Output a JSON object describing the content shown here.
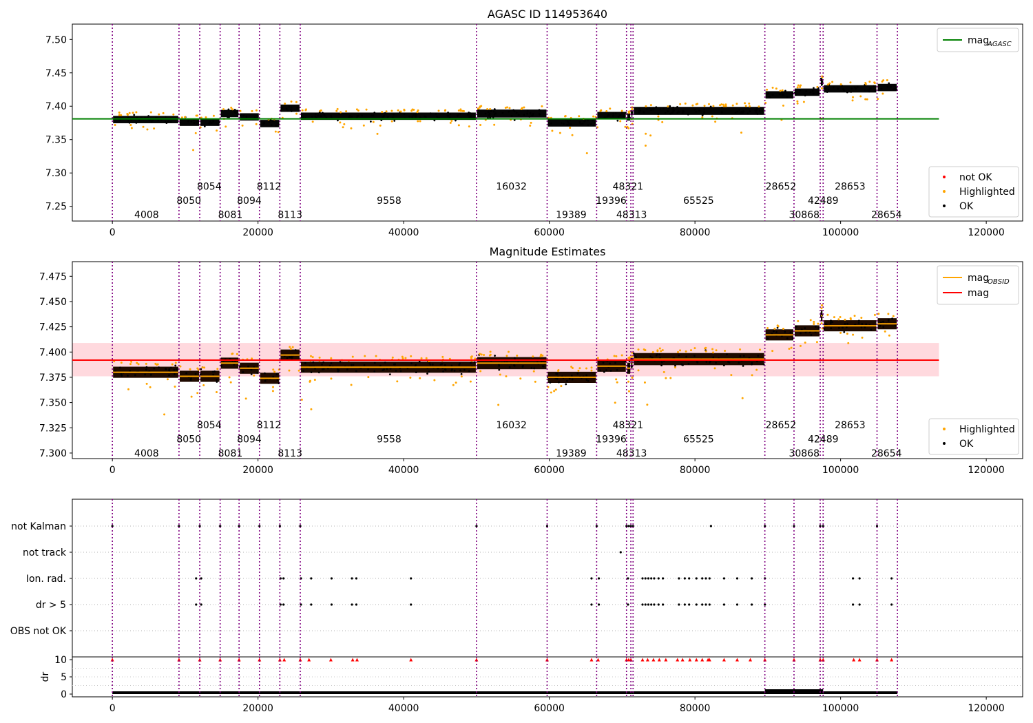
{
  "chart_data": [
    {
      "type": "scatter",
      "title": "AGASC ID 114953640",
      "xlim": [
        -5500,
        125000
      ],
      "ylim": [
        7.228,
        7.523
      ],
      "xticks": [
        0,
        20000,
        40000,
        60000,
        80000,
        100000,
        120000
      ],
      "xtick_labels": [
        "0",
        "20000",
        "40000",
        "60000",
        "80000",
        "100000",
        "120000"
      ],
      "yticks": [
        7.25,
        7.3,
        7.35,
        7.4,
        7.45,
        7.5
      ],
      "ytick_labels": [
        "7.25",
        "7.30",
        "7.35",
        "7.40",
        "7.45",
        "7.50"
      ],
      "hline": {
        "y": 7.381,
        "x_range": [
          -5500,
          113500
        ],
        "color": "#008000",
        "label": "mag",
        "label_sub": "AGASC"
      },
      "legend_lines": {
        "placement": "upper right",
        "entries": [
          {
            "label": "mag",
            "sub": "AGASC",
            "color": "#008000"
          }
        ]
      },
      "legend_points": {
        "placement": "lower right",
        "entries": [
          {
            "label": "not OK",
            "color": "#ff0000"
          },
          {
            "label": "Highlighted",
            "color": "#ffa500"
          },
          {
            "label": "OK",
            "color": "#000000"
          }
        ]
      },
      "label_rows_y": [
        7.28,
        7.259,
        7.238
      ]
    },
    {
      "type": "scatter",
      "title": "Magnitude Estimates",
      "xlim": [
        -5500,
        125000
      ],
      "ylim": [
        7.2945,
        7.4895
      ],
      "xticks": [
        0,
        20000,
        40000,
        60000,
        80000,
        100000,
        120000
      ],
      "xtick_labels": [
        "0",
        "20000",
        "40000",
        "60000",
        "80000",
        "100000",
        "120000"
      ],
      "yticks": [
        7.3,
        7.325,
        7.35,
        7.375,
        7.4,
        7.425,
        7.45,
        7.475
      ],
      "ytick_labels": [
        "7.300",
        "7.325",
        "7.350",
        "7.375",
        "7.400",
        "7.425",
        "7.450",
        "7.475"
      ],
      "hline": {
        "y": 7.392,
        "x_range": [
          -5500,
          113500
        ],
        "color": "#ff0000",
        "label": "mag"
      },
      "band": {
        "y_range": [
          7.376,
          7.409
        ],
        "x_range": [
          -5500,
          113500
        ],
        "color": "#ffc0c8"
      },
      "legend_lines": {
        "placement": "upper right",
        "entries": [
          {
            "label": "mag",
            "sub": "OBSID",
            "color": "#ffa500"
          },
          {
            "label": "mag",
            "sub": "",
            "color": "#ff0000"
          }
        ]
      },
      "legend_points": {
        "placement": "lower right",
        "entries": [
          {
            "label": "Highlighted",
            "color": "#ffa500"
          },
          {
            "label": "OK",
            "color": "#000000"
          }
        ]
      },
      "label_rows_y": [
        7.328,
        7.314,
        7.3
      ]
    },
    {
      "type": "scatter",
      "title": "",
      "xlim": [
        -5500,
        125000
      ],
      "categories": [
        "not Kalman",
        "not track",
        "Ion. rad.",
        "dr > 5",
        "OBS not OK"
      ],
      "flags": {
        "not Kalman": [
          0,
          9150,
          12000,
          14800,
          17400,
          20200,
          23000,
          25800,
          50000,
          59700,
          66500,
          70600,
          70900,
          71200,
          71500,
          82200,
          89600,
          93600,
          97200,
          97600,
          105000
        ],
        "not track": [
          69800
        ],
        "Ion. rad.": [
          11500,
          12200,
          23100,
          23500,
          25900,
          27300,
          30100,
          32900,
          33500,
          41000,
          65800,
          66800,
          70800,
          72800,
          73200,
          73600,
          74000,
          74400,
          75000,
          75600,
          77800,
          78600,
          79200,
          80200,
          81000,
          81500,
          82000,
          84000,
          85800,
          87800,
          89600,
          101700,
          102600,
          107000
        ],
        "dr > 5": [
          11500,
          12200,
          23100,
          23500,
          25900,
          27300,
          30100,
          32900,
          33500,
          41000,
          65800,
          66800,
          70800,
          72800,
          73200,
          73600,
          74000,
          74400,
          75000,
          75600,
          77800,
          78600,
          79200,
          80200,
          81000,
          81500,
          82000,
          84000,
          85800,
          87800,
          89600,
          101700,
          102600,
          107000
        ]
      }
    },
    {
      "type": "scatter",
      "title": "",
      "ylabel": "dr",
      "xlim": [
        -5500,
        125000
      ],
      "ylim": [
        -0.8,
        10.8
      ],
      "xticks": [
        0,
        20000,
        40000,
        60000,
        80000,
        100000,
        120000
      ],
      "xtick_labels": [
        "0",
        "20000",
        "40000",
        "60000",
        "80000",
        "100000",
        "120000"
      ],
      "yticks": [
        0,
        5,
        10
      ],
      "ytick_labels": [
        "0",
        "5",
        "10"
      ],
      "clipped_at_10": [
        0,
        9150,
        12000,
        14800,
        17400,
        20200,
        23000,
        23600,
        25800,
        27000,
        30000,
        33000,
        33600,
        41000,
        50000,
        59700,
        65800,
        66700,
        70600,
        70900,
        71200,
        72800,
        73500,
        74300,
        75100,
        76000,
        77600,
        78300,
        79300,
        80200,
        81000,
        81800,
        82000,
        84000,
        85800,
        87600,
        89600,
        93600,
        97200,
        97600,
        101800,
        102600,
        105000,
        107000
      ]
    }
  ],
  "observations": [
    {
      "obsid": "4008",
      "start": 0,
      "mag": 7.38,
      "row": 2,
      "label_x": 4700
    },
    {
      "obsid": "8050",
      "start": 9150,
      "mag": 7.376,
      "row": 1,
      "label_x": 10500
    },
    {
      "obsid": "8054",
      "start": 12000,
      "mag": 7.376,
      "row": 0,
      "label_x": 13300
    },
    {
      "obsid": "8081",
      "start": 14800,
      "mag": 7.389,
      "row": 2,
      "label_x": 16200
    },
    {
      "obsid": "8094",
      "start": 17400,
      "mag": 7.384,
      "row": 1,
      "label_x": 18800
    },
    {
      "obsid": "8112",
      "start": 20200,
      "mag": 7.374,
      "row": 0,
      "label_x": 21500
    },
    {
      "obsid": "8113",
      "start": 23000,
      "mag": 7.397,
      "row": 2,
      "label_x": 24400
    },
    {
      "obsid": "9558",
      "start": 25800,
      "mag": 7.385,
      "row": 1,
      "label_x": 38000
    },
    {
      "obsid": "16032",
      "start": 50000,
      "mag": 7.389,
      "row": 0,
      "label_x": 54800
    },
    {
      "obsid": "19389",
      "start": 59700,
      "mag": 7.375,
      "row": 2,
      "label_x": 63000
    },
    {
      "obsid": "19396",
      "start": 66500,
      "mag": 7.386,
      "row": 1,
      "label_x": 68500
    },
    {
      "obsid": "48321",
      "start": 70600,
      "mag": 7.384,
      "row": 0,
      "label_x": 70800
    },
    {
      "obsid": "48313",
      "start": 71200,
      "mag": 7.389,
      "row": 2,
      "label_x": 71300
    },
    {
      "obsid": "65525",
      "start": 71500,
      "mag": 7.393,
      "row": 1,
      "label_x": 80500
    },
    {
      "obsid": "28652",
      "start": 89600,
      "mag": 7.417,
      "row": 0,
      "label_x": 91800
    },
    {
      "obsid": "30868",
      "start": 93600,
      "mag": 7.421,
      "row": 2,
      "label_x": 95000
    },
    {
      "obsid": "42489",
      "start": 97200,
      "mag": 7.436,
      "row": 1,
      "label_x": 97600
    },
    {
      "obsid": "28653",
      "start": 97600,
      "mag": 7.426,
      "row": 0,
      "label_x": 101300
    },
    {
      "obsid": "28654",
      "start": 105000,
      "mag": 7.428,
      "row": 2,
      "label_x": 106300
    }
  ],
  "series_end": 107800,
  "colors": {
    "ok": "#000000",
    "highlighted": "#ffa500",
    "not_ok": "#ff0000",
    "agasc": "#008000",
    "mag": "#ff0000",
    "obsid_mag": "#ffa500",
    "obsid_line": "#800080",
    "band": "#ffc0c8"
  }
}
